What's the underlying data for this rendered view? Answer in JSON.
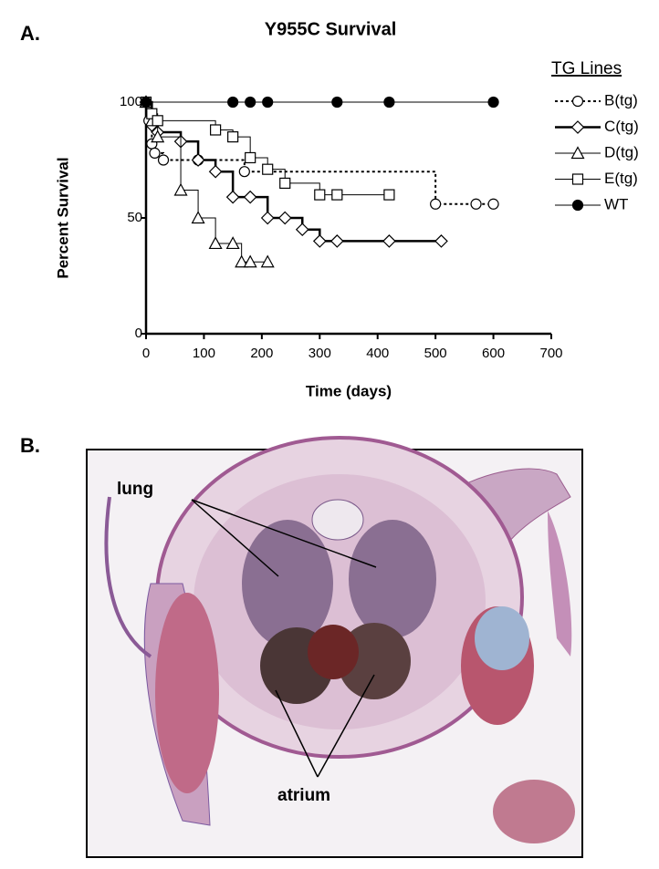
{
  "panel_labels": [
    "A.",
    "B."
  ],
  "chart_data": {
    "type": "line",
    "title": "Y955C Survival",
    "xlabel": "Time (days)",
    "ylabel": "Percent Survival",
    "legend_title": "TG Lines",
    "legend": "upper right outside",
    "step": true,
    "xlim": [
      0,
      700
    ],
    "xticks": [
      0,
      100,
      200,
      300,
      400,
      500,
      600,
      700
    ],
    "ylim": [
      0,
      100
    ],
    "yticks": [
      0,
      50,
      100
    ],
    "series": [
      {
        "name": "B(tg)",
        "color": "#000000",
        "line_style": "dotted",
        "marker": "circle",
        "x": [
          0,
          5,
          10,
          15,
          30,
          90,
          170,
          500,
          570,
          600
        ],
        "values": [
          100,
          92,
          82,
          78,
          75,
          75,
          70,
          56,
          56,
          56
        ]
      },
      {
        "name": "C(tg)",
        "color": "#000000",
        "line_style": "thick",
        "marker": "diamond",
        "x": [
          0,
          10,
          20,
          60,
          90,
          120,
          150,
          180,
          210,
          240,
          270,
          300,
          330,
          420,
          510
        ],
        "values": [
          100,
          90,
          87,
          83,
          75,
          70,
          59,
          59,
          50,
          50,
          45,
          40,
          40,
          40,
          40
        ]
      },
      {
        "name": "D(tg)",
        "color": "#000000",
        "line_style": "solid",
        "marker": "triangle",
        "x": [
          0,
          10,
          20,
          60,
          90,
          120,
          150,
          165,
          180,
          210
        ],
        "values": [
          100,
          92,
          85,
          62,
          50,
          39,
          39,
          31,
          31,
          31
        ]
      },
      {
        "name": "E(tg)",
        "color": "#000000",
        "line_style": "solid",
        "marker": "square",
        "x": [
          0,
          10,
          20,
          120,
          150,
          180,
          210,
          240,
          300,
          330,
          420
        ],
        "values": [
          100,
          95,
          92,
          88,
          85,
          76,
          71,
          65,
          60,
          60,
          60
        ]
      },
      {
        "name": "WT",
        "color": "#000000",
        "line_style": "solid",
        "marker": "filled-circle",
        "x": [
          0,
          150,
          180,
          210,
          330,
          420,
          600
        ],
        "values": [
          100,
          100,
          100,
          100,
          100,
          100,
          100
        ]
      }
    ]
  },
  "histology": {
    "annotations": [
      "lung",
      "atrium"
    ]
  }
}
